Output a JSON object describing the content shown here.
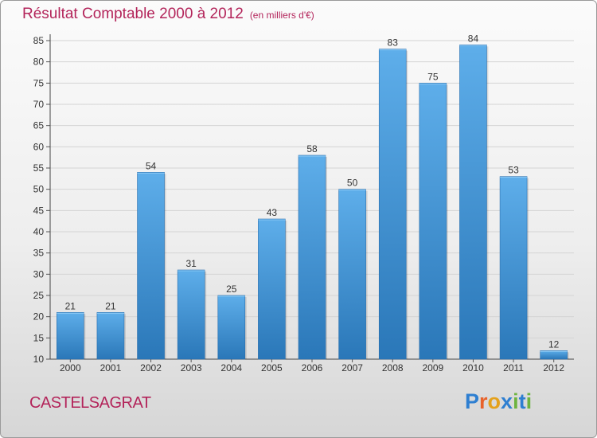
{
  "header": {
    "title": "Résultat Comptable 2000 à 2012",
    "subtitle": "(en milliers d'€)"
  },
  "footer": {
    "town": "CASTELSAGRAT",
    "logo_text": "Proxiti",
    "logo_colors": [
      "#2e7fd1",
      "#e8622a",
      "#e4a11b",
      "#2e7fd1",
      "#6db33f",
      "#2e7fd1",
      "#6db33f"
    ]
  },
  "chart_data": {
    "type": "bar",
    "title": "Résultat Comptable 2000 à 2012",
    "subtitle": "(en milliers d'€)",
    "categories": [
      "2000",
      "2001",
      "2002",
      "2003",
      "2004",
      "2005",
      "2006",
      "2007",
      "2008",
      "2009",
      "2010",
      "2011",
      "2012"
    ],
    "values": [
      21,
      21,
      54,
      31,
      25,
      43,
      58,
      50,
      83,
      75,
      84,
      53,
      12
    ],
    "ylim": [
      10,
      85
    ],
    "yticks": [
      10,
      15,
      20,
      25,
      30,
      35,
      40,
      45,
      50,
      55,
      60,
      65,
      70,
      75,
      80,
      85
    ],
    "grid": true,
    "bar_color": "#3d8fd3"
  }
}
